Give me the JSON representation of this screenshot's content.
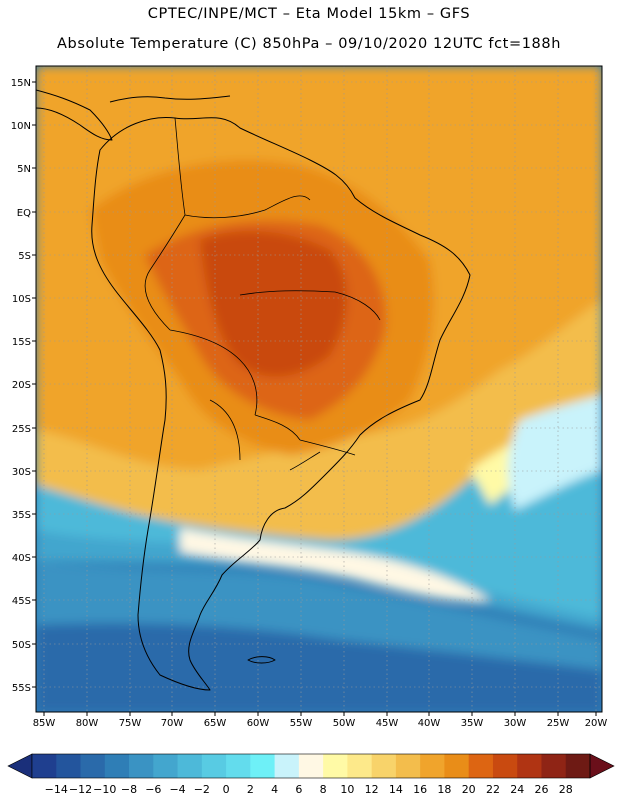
{
  "header": {
    "line1": "CPTEC/INPE/MCT –   Eta Model 15km – GFS",
    "line2": "Absolute Temperature (C) 850hPa – 09/10/2020 12UTC fct=188h"
  },
  "map": {
    "lat_ticks": [
      "15N",
      "10N",
      "5N",
      "EQ",
      "5S",
      "10S",
      "15S",
      "20S",
      "25S",
      "30S",
      "35S",
      "40S",
      "45S",
      "50S",
      "55S"
    ],
    "lon_ticks": [
      "85W",
      "80W",
      "75W",
      "70W",
      "65W",
      "60W",
      "55W",
      "50W",
      "45W",
      "40W",
      "35W",
      "30W",
      "25W",
      "20W"
    ]
  },
  "colorbar": {
    "labels": [
      "-14",
      "-12",
      "-10",
      "-8",
      "-6",
      "-4",
      "-2",
      "0",
      "2",
      "4",
      "6",
      "8",
      "10",
      "12",
      "14",
      "16",
      "18",
      "20",
      "22",
      "24",
      "26",
      "28"
    ],
    "colors": [
      "#1f3f8f",
      "#23559d",
      "#2a6aaa",
      "#2f7eb6",
      "#3a93c3",
      "#43a6ce",
      "#4db9d9",
      "#58cbe3",
      "#63dced",
      "#6ef0f7",
      "#c9f3fb",
      "#fff8e4",
      "#fffaa6",
      "#fde98a",
      "#f8d36a",
      "#f3bd4c",
      "#f0a42c",
      "#e98d18",
      "#dd6512",
      "#c94a10",
      "#b03413",
      "#8f2415",
      "#6e1a14"
    ],
    "arrow_left_color": "#1a2f7a",
    "arrow_right_color": "#6a0f1a"
  }
}
